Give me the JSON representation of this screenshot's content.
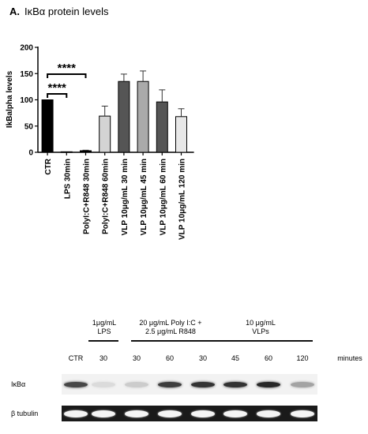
{
  "chart_data": {
    "type": "bar",
    "panel_label": "A.",
    "title": "IκBα protein levels",
    "xlabel": "",
    "ylabel": "IkBalpha levels",
    "ylim": [
      0,
      200
    ],
    "yticks": [
      "0",
      "50",
      "100",
      "150",
      "200"
    ],
    "categories": [
      "CTR",
      "LPS 30min",
      "PolyI:C+R848 30min",
      "PolyI:C+R848 60min",
      "VLP 10μg/mL 30 min",
      "VLP 10μg/mL 45 min",
      "VLP 10μg/mL 60 min",
      "VLP 10μg/mL 120 min"
    ],
    "values": [
      100,
      1,
      3,
      69,
      135,
      135,
      96,
      68
    ],
    "errors": [
      0,
      0,
      1,
      19,
      14,
      20,
      23,
      15
    ],
    "colors": [
      "#000000",
      "#000000",
      "#000000",
      "#d4d4d4",
      "#555555",
      "#aaaaaa",
      "#555555",
      "#e8e8e8"
    ],
    "significance": [
      {
        "label": "****",
        "from": 0,
        "to": 1
      },
      {
        "label": "****",
        "from": 0,
        "to": 2
      }
    ],
    "grid": false,
    "legend": "none"
  },
  "western_blot": {
    "groups": [
      {
        "label": "1μg/mL\nLPS"
      },
      {
        "label": "20 μg/mL Poly I:C +\n2.5 μg/mL R848"
      },
      {
        "label": "10 μg/mL\nVLPs"
      }
    ],
    "lanes": [
      "CTR",
      "30",
      "30",
      "60",
      "30",
      "45",
      "60",
      "120"
    ],
    "time_unit": "minutes",
    "rows": [
      {
        "label": "IκBα",
        "intensities": [
          0.8,
          0.08,
          0.15,
          0.85,
          0.9,
          0.9,
          0.95,
          0.35
        ]
      },
      {
        "label": "β tubulin",
        "intensities": [
          1,
          1,
          1,
          1,
          1,
          1,
          1,
          1
        ]
      }
    ]
  }
}
